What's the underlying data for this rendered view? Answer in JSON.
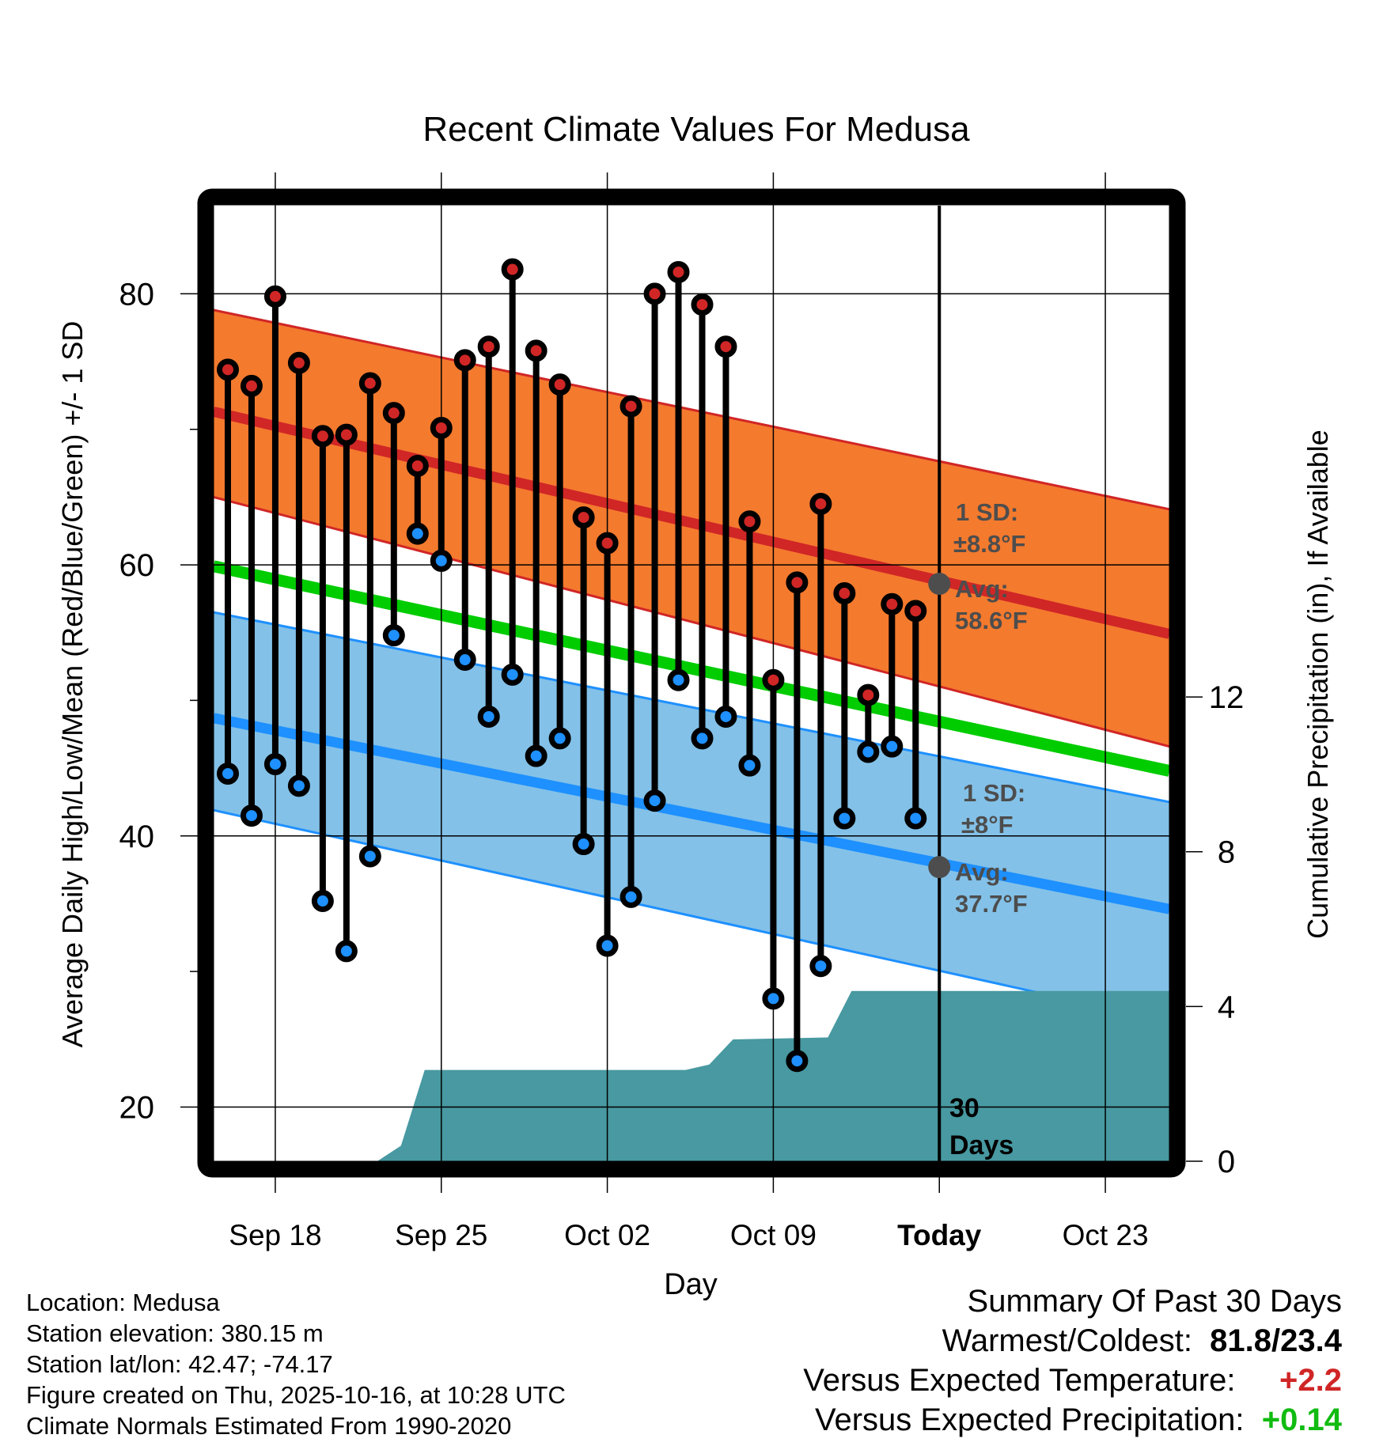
{
  "chart_data": {
    "type": "line",
    "title": "Recent Climate Values For Medusa",
    "xlabel": "Day",
    "ylabel": "Average Daily High/Low/Mean (Red/Blue/Green) +/- 1 SD",
    "y2label": "Cumulative Precipitation (in), If Available",
    "ylim": [
      16.0,
      86.5
    ],
    "y2lim": [
      0,
      24.7
    ],
    "xlim_days": [
      -30.6,
      9.7
    ],
    "x_ticks": [
      {
        "day": -28,
        "label": "Sep 18"
      },
      {
        "day": -21,
        "label": "Sep 25"
      },
      {
        "day": -14,
        "label": "Oct 02"
      },
      {
        "day": -7,
        "label": "Oct 09"
      },
      {
        "day": 0,
        "label": "Today"
      },
      {
        "day": 7,
        "label": "Oct 23"
      }
    ],
    "y_ticks_major": [
      20,
      40,
      60,
      80
    ],
    "y_ticks_minor": [
      30,
      50,
      70
    ],
    "y2_ticks": [
      0,
      4,
      8,
      12
    ],
    "grid": true,
    "daily": {
      "dates": [
        "Sep 16",
        "Sep 17",
        "Sep 18",
        "Sep 19",
        "Sep 20",
        "Sep 21",
        "Sep 22",
        "Sep 23",
        "Sep 24",
        "Sep 25",
        "Sep 26",
        "Sep 27",
        "Sep 28",
        "Sep 29",
        "Sep 30",
        "Oct 01",
        "Oct 02",
        "Oct 03",
        "Oct 04",
        "Oct 05",
        "Oct 06",
        "Oct 07",
        "Oct 08",
        "Oct 09",
        "Oct 10",
        "Oct 11",
        "Oct 12",
        "Oct 13",
        "Oct 14",
        "Oct 15"
      ],
      "days_from_today": [
        -30,
        -29,
        -28,
        -27,
        -26,
        -25,
        -24,
        -23,
        -22,
        -21,
        -20,
        -19,
        -18,
        -17,
        -16,
        -15,
        -14,
        -13,
        -12,
        -11,
        -10,
        -9,
        -8,
        -7,
        -6,
        -5,
        -4,
        -3,
        -2,
        -1
      ],
      "high": [
        74.4,
        73.2,
        79.8,
        74.9,
        69.5,
        69.6,
        73.4,
        71.2,
        67.3,
        70.1,
        75.1,
        76.1,
        81.8,
        75.8,
        73.3,
        63.5,
        61.6,
        71.7,
        80.0,
        81.6,
        79.2,
        76.1,
        63.2,
        51.5,
        58.7,
        64.5,
        57.9,
        50.4,
        57.1,
        56.6
      ],
      "low": [
        44.6,
        41.5,
        45.3,
        43.7,
        35.2,
        31.5,
        38.5,
        54.8,
        62.3,
        60.3,
        53.0,
        48.8,
        51.9,
        45.9,
        47.2,
        39.4,
        31.9,
        35.5,
        42.6,
        51.5,
        47.2,
        48.8,
        45.2,
        28.0,
        23.4,
        30.4,
        41.3,
        46.2,
        46.6,
        41.3
      ]
    },
    "normals": {
      "x_days": [
        -30.6,
        9.7
      ],
      "high_mean": [
        71.3,
        54.9
      ],
      "high_upper": [
        78.8,
        64.1
      ],
      "high_lower": [
        65.0,
        46.6
      ],
      "mean": [
        59.9,
        44.8
      ],
      "low_mean": [
        48.7,
        34.6
      ],
      "low_upper": [
        56.5,
        42.5
      ],
      "low_lower": [
        41.9,
        26.3
      ]
    },
    "precip_cumulative": {
      "x_days": [
        -30.6,
        -23.7,
        -22.7,
        -21.7,
        -10.7,
        -9.7,
        -8.7,
        -4.7,
        -3.7,
        9.7
      ],
      "values": [
        0,
        0,
        0.4,
        2.36,
        2.36,
        2.5,
        3.15,
        3.2,
        4.4,
        4.4
      ]
    },
    "annotations": {
      "high_sd": "1 SD:",
      "high_sd_val": "±8.8°F",
      "high_avg": "Avg:",
      "high_avg_val": "58.6°F",
      "low_sd": "1 SD:",
      "low_sd_val": "±8°F",
      "low_avg": "Avg:",
      "low_avg_val": "37.7°F",
      "today_high_avg": 58.6,
      "today_low_avg": 37.7,
      "period_line1": "30",
      "period_line2": "Days"
    },
    "colors": {
      "high_band": "#f47a2e",
      "high_line": "#d02626",
      "low_band": "#83c1e8",
      "low_line": "#1e90ff",
      "mean_line": "#00cc00",
      "precip": "#4899a1",
      "avg_marker": "#4d4d4d"
    }
  },
  "info": {
    "location": "Location: Medusa",
    "elevation": "Station elevation: 380.15 m",
    "latlon": "Station lat/lon: 42.47; -74.17",
    "created": "Figure created on Thu, 2025-10-16, at 10:28 UTC",
    "normals": "Climate Normals Estimated From 1990-2020"
  },
  "summary": {
    "title": "Summary Of Past 30 Days",
    "warmest_label": "Warmest/Coldest:",
    "warmest_value": "81.8/23.4",
    "temp_label": "Versus Expected Temperature:",
    "temp_value": "+2.2",
    "temp_color": "#d02626",
    "precip_label": "Versus Expected Precipitation:",
    "precip_value": "+0.14",
    "precip_color": "#11bb11"
  }
}
